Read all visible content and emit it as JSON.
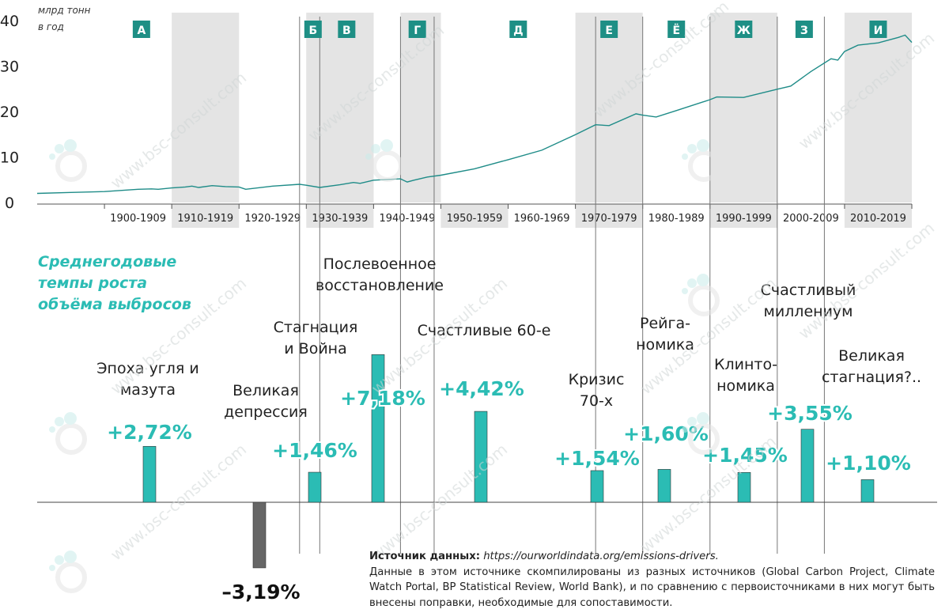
{
  "chart_data": [
    {
      "type": "line",
      "ylabel": "млрд тонн в год",
      "ylabel_lines": [
        "млрд тонн",
        "в год"
      ],
      "ylim": [
        0,
        40
      ],
      "yticks": [
        0,
        10,
        20,
        30,
        40
      ],
      "xlim": [
        1890,
        2020
      ],
      "decades": [
        "1900-1909",
        "1910-1919",
        "1920-1929",
        "1930-1939",
        "1940-1949",
        "1950-1959",
        "1960-1969",
        "1970-1979",
        "1980-1989",
        "1990-1999",
        "2000-2009",
        "2010-2019"
      ],
      "x": [
        1890,
        1895,
        1900,
        1905,
        1907,
        1908,
        1910,
        1912,
        1913,
        1914,
        1916,
        1918,
        1920,
        1921,
        1925,
        1929,
        1930,
        1932,
        1935,
        1937,
        1938,
        1940,
        1944,
        1945,
        1946,
        1948,
        1950,
        1955,
        1960,
        1965,
        1970,
        1973,
        1975,
        1979,
        1980,
        1982,
        1985,
        1990,
        1991,
        1995,
        2000,
        2002,
        2005,
        2008,
        2009,
        2010,
        2012,
        2015,
        2018,
        2019,
        2020
      ],
      "y": [
        2.0,
        2.2,
        2.4,
        2.9,
        3.0,
        2.9,
        3.2,
        3.4,
        3.6,
        3.3,
        3.7,
        3.5,
        3.4,
        2.9,
        3.6,
        4.0,
        3.8,
        3.3,
        3.9,
        4.4,
        4.2,
        4.9,
        5.2,
        4.5,
        4.9,
        5.6,
        6.0,
        7.4,
        9.4,
        11.5,
        14.9,
        17.1,
        16.9,
        19.5,
        19.2,
        18.8,
        20.2,
        22.6,
        23.2,
        23.1,
        24.9,
        25.6,
        28.8,
        31.6,
        31.3,
        33.2,
        34.6,
        35.1,
        36.3,
        36.8,
        35.2
      ],
      "shaded_periods": [
        {
          "label": "А",
          "from": 1900,
          "to": 1913
        },
        {
          "label": "Б",
          "from": 1929,
          "to": 1932
        },
        {
          "label": "В",
          "from": 1932,
          "to": 1940
        },
        {
          "label": "Г",
          "from": 1944,
          "to": 1949
        },
        {
          "label": "Д",
          "from": 1950,
          "to": 1973
        },
        {
          "label": "Е",
          "from": 1970,
          "to": 1980
        },
        {
          "label": "Ё",
          "from": 1980,
          "to": 1990
        },
        {
          "label": "Ж",
          "from": 1990,
          "to": 2000
        },
        {
          "label": "З",
          "from": 2000,
          "to": 2008
        },
        {
          "label": "И",
          "from": 2010,
          "to": 2020
        }
      ],
      "shaded_decades": [
        "1910-1919",
        "1930-1939",
        "1950-1959",
        "1970-1979",
        "1990-1999",
        "2010-2019"
      ],
      "dividers": [
        1929,
        1932,
        1944,
        1949,
        1973,
        1980,
        1990,
        2000,
        2007
      ]
    },
    {
      "type": "bar",
      "title": "Среднегодовые темпы роста объёма выбросов",
      "title_lines": [
        "Среднегодовые",
        "темпы роста",
        "объёма выбросов"
      ],
      "series": [
        {
          "values": [
            2.72,
            -3.19,
            1.46,
            7.18,
            4.42,
            1.54,
            1.6,
            1.45,
            3.55,
            1.1
          ],
          "value_labels": [
            "+2,72%",
            "–3,19%",
            "+1,46%",
            "+7,18%",
            "+4,42%",
            "+1,54%",
            "+1,60%",
            "+1,45%",
            "+3,55%",
            "+1,10%"
          ]
        }
      ],
      "categories": [
        [
          "Эпоха угля и",
          "мазута"
        ],
        [
          "Великая",
          "депрессия"
        ],
        [
          "Стагнация",
          "и Война"
        ],
        [
          "Послевоенное",
          "восстановление"
        ],
        [
          "Счастливые 60-е"
        ],
        [
          "Кризис",
          "70-х"
        ],
        [
          "Рейга-",
          "номика"
        ],
        [
          "Клинто-",
          "номика"
        ],
        [
          "Счастливый",
          "миллениум"
        ],
        [
          "Великая",
          "стагнация?.."
        ]
      ]
    }
  ],
  "colors": {
    "line": "#1f8c88",
    "bar_positive": "#2bbcb4",
    "bar_negative": "#666666",
    "shade": "#e4e4e4",
    "period_badge": "#1e8f85",
    "subtitle": "#2bbcb4",
    "watermark": "#cfd6d6"
  },
  "watermark": "www.bsc-consult.com",
  "source": {
    "label": "Источник данных:",
    "url": "https://ourworldindata.org/emissions-drivers.",
    "note": "Данные в этом источнике скомпилированы из разных источников (Global Carbon Project, Climate Watch Portal, BP Statistical Review, World Bank), и по сравнению с первоисточниками в них могут быть внесены поправки, необходимые для сопоставимости."
  }
}
